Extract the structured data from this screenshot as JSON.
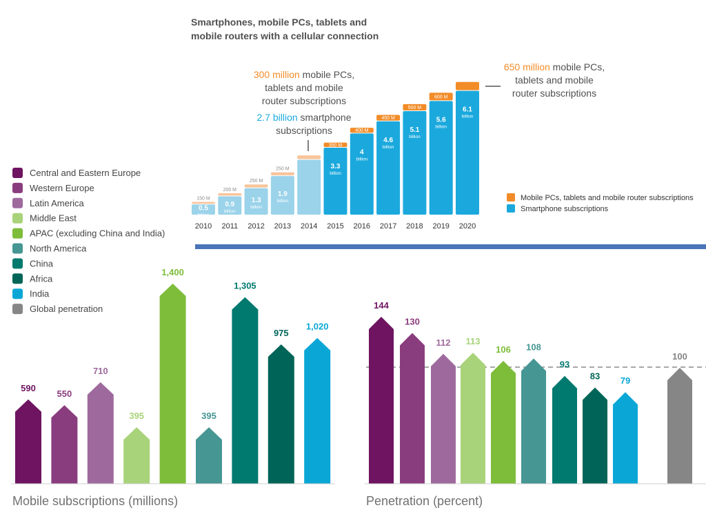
{
  "chart_data": [
    {
      "type": "bar",
      "stacked": true,
      "title": "Smartphones, mobile PCs, tablets and mobile routers with a cellular connection",
      "categories": [
        "2010",
        "2011",
        "2012",
        "2013",
        "2014",
        "2015",
        "2016",
        "2017",
        "2018",
        "2019",
        "2020"
      ],
      "series": [
        {
          "name": "Smartphone subscriptions",
          "color": "#1ba9dd",
          "color_light": "#9bd3ea",
          "values": [
            0.5,
            0.9,
            1.3,
            1.9,
            2.7,
            3.3,
            4,
            4.6,
            5.1,
            5.6,
            6.1
          ],
          "labels": [
            "0.5",
            "0.9",
            "1.3",
            "1.9",
            "",
            "3.3",
            "4",
            "4.6",
            "5.1",
            "5.6",
            "6.1"
          ],
          "unit_label": "billion"
        },
        {
          "name": "Mobile PCs, tablets and mobile router subscriptions",
          "color": "#f28c28",
          "color_light": "#f8c59d",
          "values": [
            150,
            200,
            250,
            250,
            300,
            350,
            400,
            450,
            500,
            600,
            650
          ],
          "labels": [
            "150 M",
            "200 M",
            "250 M",
            "250 M",
            "",
            "350 M",
            "400 M",
            "450 M",
            "500 M",
            "600 M",
            ""
          ]
        }
      ],
      "light_years": [
        "2010",
        "2011",
        "2012",
        "2013",
        "2014"
      ],
      "annotations": [
        {
          "highlight": "300 million",
          "text": [
            "mobile PCs,",
            "tablets and mobile",
            "router subscriptions"
          ]
        },
        {
          "highlight": "2.7 billion",
          "text": [
            "smartphone",
            "subscriptions"
          ]
        },
        {
          "highlight": "650 million",
          "text": [
            "mobile PCs,",
            "tablets and mobile",
            "router subscriptions"
          ]
        }
      ],
      "legend_position": "right"
    },
    {
      "type": "bar",
      "title": "Mobile subscriptions (millions)",
      "categories": [
        "Central and Eastern Europe",
        "Western Europe",
        "Latin America",
        "Middle East",
        "APAC (excluding China and India)",
        "North America",
        "China",
        "Africa",
        "India"
      ],
      "values": [
        590,
        550,
        710,
        395,
        1400,
        395,
        1305,
        975,
        1020
      ],
      "labels": [
        "590",
        "550",
        "710",
        "395",
        "1,400",
        "395",
        "1,305",
        "975",
        "1,020"
      ],
      "ylim": [
        0,
        1400
      ]
    },
    {
      "type": "bar",
      "title": "Penetration (percent)",
      "categories": [
        "Central and Eastern Europe",
        "Western Europe",
        "Latin America",
        "Middle East",
        "APAC (excluding China and India)",
        "North America",
        "China",
        "Africa",
        "India",
        "Global penetration"
      ],
      "values": [
        144,
        130,
        112,
        113,
        106,
        108,
        93,
        83,
        79,
        100
      ],
      "reference_line": 100,
      "ylim": [
        0,
        144
      ]
    }
  ],
  "legend": [
    {
      "name": "Central and Eastern Europe",
      "color": "#6e1461"
    },
    {
      "name": "Western Europe",
      "color": "#8a3d7e"
    },
    {
      "name": "Latin America",
      "color": "#9e6a9d"
    },
    {
      "name": "Middle East",
      "color": "#a9d37a"
    },
    {
      "name": "APAC (excluding China and India)",
      "color": "#7dbd3a"
    },
    {
      "name": "North America",
      "color": "#469693"
    },
    {
      "name": "China",
      "color": "#00796e"
    },
    {
      "name": "Africa",
      "color": "#006558"
    },
    {
      "name": "India",
      "color": "#0aa7d6"
    },
    {
      "name": "Global penetration",
      "color": "#868686"
    }
  ],
  "colors": {
    "highlight_orange": "#f28c28",
    "highlight_blue": "#1ba9dd",
    "divider": "#4a74b7",
    "axis": "#cfcfcf"
  }
}
